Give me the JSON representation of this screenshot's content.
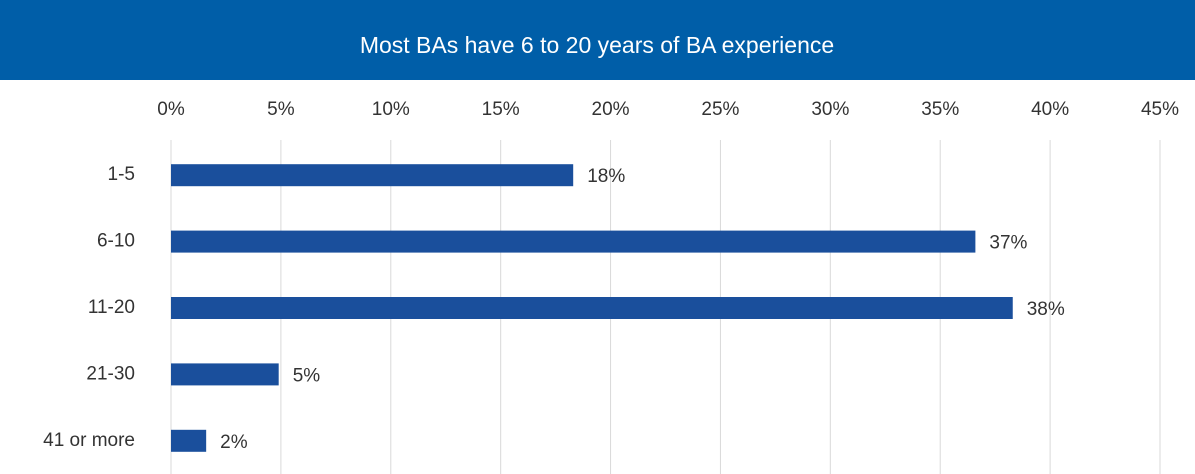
{
  "chart_data": {
    "type": "bar",
    "orientation": "horizontal",
    "title": "Most BAs have 6 to 20 years of BA experience",
    "categories": [
      "1-5",
      "6-10",
      "11-20",
      "21-30",
      "41 or more"
    ],
    "values": [
      18.3,
      36.6,
      38.3,
      4.9,
      1.6
    ],
    "value_labels": [
      "18%",
      "37%",
      "38%",
      "5%",
      "2%"
    ],
    "color": "#1a4f9c",
    "xlim": [
      0,
      45
    ],
    "xticks": [
      {
        "value": 0,
        "label": "0%"
      },
      {
        "value": 5,
        "label": "5%"
      },
      {
        "value": 10,
        "label": "10%"
      },
      {
        "value": 15,
        "label": "15%"
      },
      {
        "value": 20,
        "label": "20%"
      },
      {
        "value": 25,
        "label": "25%"
      },
      {
        "value": 30,
        "label": "30%"
      },
      {
        "value": 35,
        "label": "35%"
      },
      {
        "value": 40,
        "label": "40%"
      },
      {
        "value": 45,
        "label": "45%"
      }
    ],
    "grid": true
  }
}
